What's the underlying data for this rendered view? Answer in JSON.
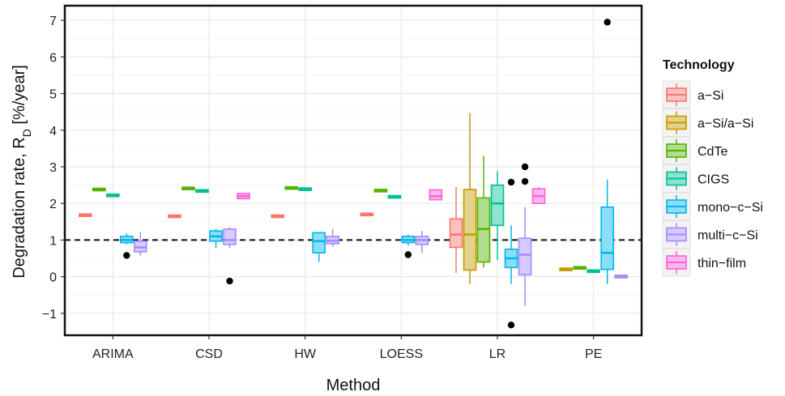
{
  "chart_data": {
    "type": "boxplot",
    "xlabel": "Method",
    "ylabel_main": "Degradation rate, R",
    "ylabel_sub": "D",
    "ylabel_unit": " [%/year]",
    "ylim": [
      -1.6,
      7.4
    ],
    "yticks": [
      "−1",
      "0",
      "1",
      "2",
      "3",
      "4",
      "5",
      "6",
      "7"
    ],
    "ytick_values": [
      -1,
      0,
      1,
      2,
      3,
      4,
      5,
      6,
      7
    ],
    "reference_line": 1,
    "grid": true,
    "legend_position": "right",
    "legend_title": "Technology",
    "categories": [
      "ARIMA",
      "CSD",
      "HW",
      "LOESS",
      "LR",
      "PE"
    ],
    "series": [
      {
        "name": "a−Si",
        "color": "#F8766D"
      },
      {
        "name": "a−Si/a−Si",
        "color": "#C49A00"
      },
      {
        "name": "CdTe",
        "color": "#53B400"
      },
      {
        "name": "CIGS",
        "color": "#00C094"
      },
      {
        "name": "mono−c−Si",
        "color": "#00B6EB"
      },
      {
        "name": "multi−c−Si",
        "color": "#A58AFF"
      },
      {
        "name": "thin−film",
        "color": "#FB61D7"
      }
    ],
    "boxes": [
      {
        "method": 0,
        "tech": 0,
        "slot": 0,
        "q1": 1.68,
        "median": 1.68,
        "q3": 1.68,
        "lo": 1.68,
        "hi": 1.68
      },
      {
        "method": 0,
        "tech": 2,
        "slot": 1,
        "q1": 2.38,
        "median": 2.38,
        "q3": 2.38,
        "lo": 2.38,
        "hi": 2.38
      },
      {
        "method": 0,
        "tech": 3,
        "slot": 2,
        "q1": 2.22,
        "median": 2.22,
        "q3": 2.22,
        "lo": 2.22,
        "hi": 2.22
      },
      {
        "method": 0,
        "tech": 4,
        "slot": 3,
        "q1": 0.93,
        "median": 1.0,
        "q3": 1.1,
        "lo": 0.88,
        "hi": 1.18,
        "outliers": [
          0.58
        ]
      },
      {
        "method": 0,
        "tech": 5,
        "slot": 4,
        "q1": 0.68,
        "median": 0.8,
        "q3": 0.97,
        "lo": 0.58,
        "hi": 1.22
      },
      {
        "method": 1,
        "tech": 0,
        "slot": 0,
        "q1": 1.65,
        "median": 1.65,
        "q3": 1.65,
        "lo": 1.65,
        "hi": 1.65
      },
      {
        "method": 1,
        "tech": 2,
        "slot": 1,
        "q1": 2.41,
        "median": 2.41,
        "q3": 2.41,
        "lo": 2.41,
        "hi": 2.41
      },
      {
        "method": 1,
        "tech": 3,
        "slot": 2,
        "q1": 2.34,
        "median": 2.34,
        "q3": 2.34,
        "lo": 2.34,
        "hi": 2.34
      },
      {
        "method": 1,
        "tech": 4,
        "slot": 3,
        "q1": 0.97,
        "median": 1.1,
        "q3": 1.25,
        "lo": 0.78,
        "hi": 1.3
      },
      {
        "method": 1,
        "tech": 5,
        "slot": 4,
        "q1": 0.88,
        "median": 1.0,
        "q3": 1.3,
        "lo": 0.78,
        "hi": 1.35,
        "outliers": [
          -0.12
        ]
      },
      {
        "method": 1,
        "tech": 6,
        "slot": 5,
        "q1": 2.13,
        "median": 2.2,
        "q3": 2.27,
        "lo": 2.13,
        "hi": 2.27
      },
      {
        "method": 2,
        "tech": 0,
        "slot": 0,
        "q1": 1.65,
        "median": 1.65,
        "q3": 1.65,
        "lo": 1.65,
        "hi": 1.65
      },
      {
        "method": 2,
        "tech": 2,
        "slot": 1,
        "q1": 2.42,
        "median": 2.42,
        "q3": 2.42,
        "lo": 2.42,
        "hi": 2.42
      },
      {
        "method": 2,
        "tech": 3,
        "slot": 2,
        "q1": 2.39,
        "median": 2.39,
        "q3": 2.39,
        "lo": 2.39,
        "hi": 2.39
      },
      {
        "method": 2,
        "tech": 4,
        "slot": 3,
        "q1": 0.65,
        "median": 0.97,
        "q3": 1.2,
        "lo": 0.4,
        "hi": 1.2
      },
      {
        "method": 2,
        "tech": 5,
        "slot": 4,
        "q1": 0.9,
        "median": 0.98,
        "q3": 1.1,
        "lo": 0.82,
        "hi": 1.3
      },
      {
        "method": 3,
        "tech": 0,
        "slot": 0,
        "q1": 1.7,
        "median": 1.7,
        "q3": 1.7,
        "lo": 1.7,
        "hi": 1.7
      },
      {
        "method": 3,
        "tech": 2,
        "slot": 1,
        "q1": 2.35,
        "median": 2.35,
        "q3": 2.35,
        "lo": 2.35,
        "hi": 2.35
      },
      {
        "method": 3,
        "tech": 3,
        "slot": 2,
        "q1": 2.18,
        "median": 2.18,
        "q3": 2.18,
        "lo": 2.18,
        "hi": 2.18
      },
      {
        "method": 3,
        "tech": 4,
        "slot": 3,
        "q1": 0.93,
        "median": 1.0,
        "q3": 1.1,
        "lo": 0.85,
        "hi": 1.15,
        "outliers": [
          0.6
        ]
      },
      {
        "method": 3,
        "tech": 5,
        "slot": 4,
        "q1": 0.88,
        "median": 1.0,
        "q3": 1.1,
        "lo": 0.65,
        "hi": 1.25
      },
      {
        "method": 3,
        "tech": 6,
        "slot": 5,
        "q1": 2.1,
        "median": 2.2,
        "q3": 2.37,
        "lo": 2.1,
        "hi": 2.37
      },
      {
        "method": 4,
        "tech": 0,
        "slot": 0,
        "q1": 0.8,
        "median": 1.15,
        "q3": 1.58,
        "lo": 0.1,
        "hi": 2.45
      },
      {
        "method": 4,
        "tech": 1,
        "slot": 1,
        "q1": 0.18,
        "median": 1.15,
        "q3": 2.38,
        "lo": -0.2,
        "hi": 4.47
      },
      {
        "method": 4,
        "tech": 2,
        "slot": 2,
        "q1": 0.4,
        "median": 1.3,
        "q3": 2.15,
        "lo": 0.25,
        "hi": 3.3
      },
      {
        "method": 4,
        "tech": 3,
        "slot": 3,
        "q1": 1.4,
        "median": 2.0,
        "q3": 2.5,
        "lo": 0.45,
        "hi": 2.88
      },
      {
        "method": 4,
        "tech": 4,
        "slot": 4,
        "q1": 0.25,
        "median": 0.5,
        "q3": 0.75,
        "lo": -0.2,
        "hi": 1.4,
        "outliers": [
          -1.32,
          2.58
        ]
      },
      {
        "method": 4,
        "tech": 5,
        "slot": 5,
        "q1": 0.05,
        "median": 0.6,
        "q3": 1.05,
        "lo": -0.8,
        "hi": 1.9,
        "outliers": [
          3.0,
          2.6
        ]
      },
      {
        "method": 4,
        "tech": 6,
        "slot": 6,
        "q1": 2.0,
        "median": 2.2,
        "q3": 2.4,
        "lo": 2.0,
        "hi": 2.45
      },
      {
        "method": 5,
        "tech": 1,
        "slot": 0,
        "q1": 0.2,
        "median": 0.2,
        "q3": 0.2,
        "lo": 0.2,
        "hi": 0.2
      },
      {
        "method": 5,
        "tech": 2,
        "slot": 1,
        "q1": 0.24,
        "median": 0.24,
        "q3": 0.24,
        "lo": 0.24,
        "hi": 0.24
      },
      {
        "method": 5,
        "tech": 3,
        "slot": 2,
        "q1": 0.15,
        "median": 0.15,
        "q3": 0.15,
        "lo": 0.15,
        "hi": 0.15
      },
      {
        "method": 5,
        "tech": 4,
        "slot": 3,
        "q1": 0.2,
        "median": 0.65,
        "q3": 1.9,
        "lo": -0.2,
        "hi": 2.65,
        "outliers": [
          6.95
        ]
      },
      {
        "method": 5,
        "tech": 5,
        "slot": 4,
        "q1": -0.03,
        "median": 0.0,
        "q3": 0.04,
        "lo": -0.05,
        "hi": 0.06
      }
    ]
  }
}
